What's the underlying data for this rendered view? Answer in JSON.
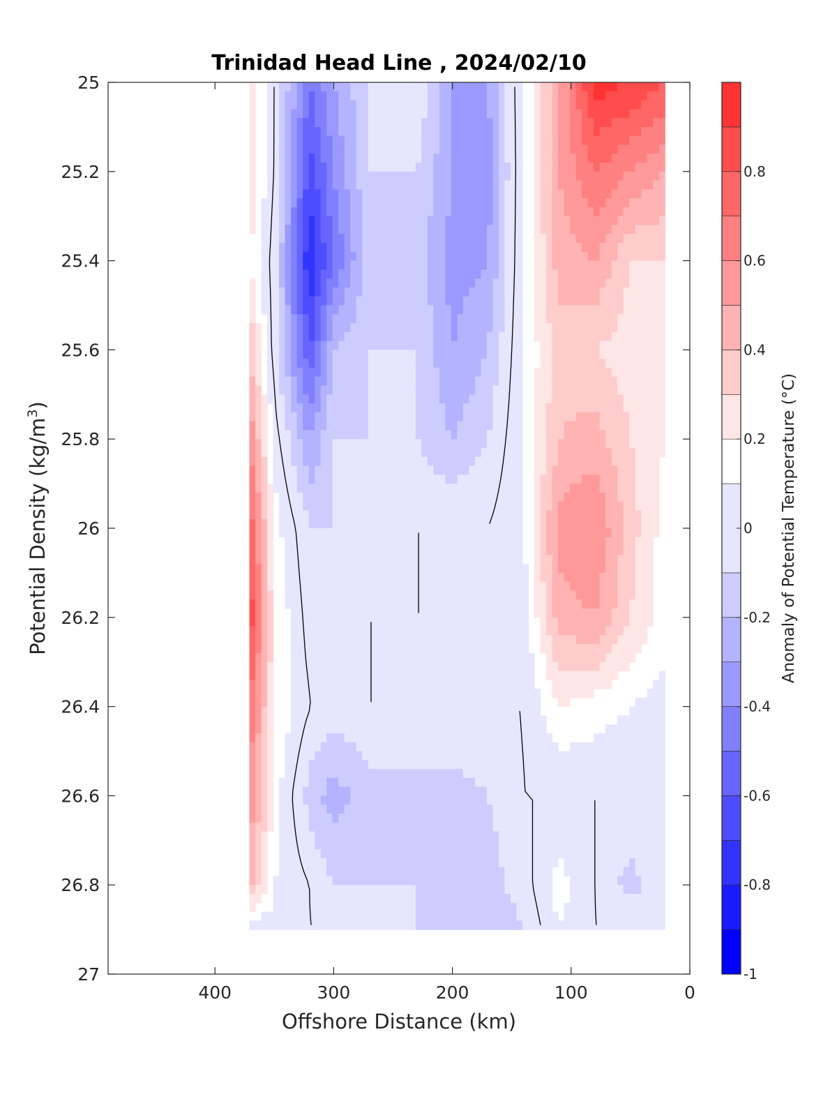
{
  "chart_data": {
    "type": "heatmap",
    "subtype": "filled-contour",
    "title": "Trinidad Head Line , 2024/02/10",
    "xlabel": "Offshore Distance (km)",
    "ylabel_main": "Potential Density (kg/m",
    "ylabel_sup": "3",
    "ylabel_close": ")",
    "xlim": [
      490,
      0
    ],
    "x_reversed": true,
    "ylim": [
      25,
      27
    ],
    "y_reversed": true,
    "x_ticks": [
      400,
      300,
      200,
      100,
      0
    ],
    "y_ticks": [
      "25",
      "25.2",
      "25.4",
      "25.6",
      "25.8",
      "26",
      "26.2",
      "26.4",
      "26.6",
      "26.8",
      "27"
    ],
    "grid": false,
    "colorbar": {
      "label": "Anomaly of Potential Temperature (°C)",
      "range": [
        -1,
        1
      ],
      "levels": [
        -1,
        -0.9,
        -0.8,
        -0.7,
        -0.6,
        -0.5,
        -0.4,
        -0.3,
        -0.2,
        -0.1,
        0.1,
        0.2,
        0.3,
        0.4,
        0.5,
        0.6,
        0.7,
        0.8,
        0.9,
        1
      ],
      "tick_labels": [
        "-1",
        "-0.8",
        "-0.6",
        "-0.4",
        "-0.2",
        "0",
        "0.2",
        "0.4",
        "0.6",
        "0.8"
      ],
      "tick_values": [
        -1,
        -0.8,
        -0.6,
        -0.4,
        -0.2,
        0,
        0.2,
        0.4,
        0.6,
        0.8
      ],
      "colors": [
        "#0000ff",
        "#1a1aff",
        "#3333ff",
        "#4d4dff",
        "#6666ff",
        "#8080ff",
        "#9999ff",
        "#b3b3ff",
        "#ccccff",
        "#e6e6ff",
        "#ffffff",
        "#ffe6e6",
        "#ffcccc",
        "#ffb3b3",
        "#ff9999",
        "#ff8080",
        "#ff6666",
        "#ff4d4d",
        "#ff3333",
        "#ff1a1a"
      ]
    },
    "data_extent": {
      "x": [
        371,
        21
      ],
      "y": [
        25,
        26.9
      ]
    },
    "grid_x": [
      371,
      350,
      320,
      300,
      270,
      230,
      200,
      170,
      140,
      110,
      80,
      50,
      21
    ],
    "grid_y": [
      25,
      25.2,
      25.4,
      25.6,
      25.8,
      26,
      26.2,
      26.4,
      26.6,
      26.8,
      26.9
    ],
    "values": [
      [
        0.3,
        0.0,
        -0.5,
        -0.3,
        -0.1,
        0.0,
        -0.3,
        -0.3,
        0.1,
        0.5,
        0.95,
        0.9,
        0.8
      ],
      [
        0.3,
        0.0,
        -0.65,
        -0.4,
        -0.1,
        -0.1,
        -0.3,
        -0.35,
        0.1,
        0.5,
        0.7,
        0.6,
        0.5
      ],
      [
        0.2,
        -0.05,
        -0.8,
        -0.5,
        -0.15,
        -0.15,
        -0.35,
        -0.3,
        0.1,
        0.45,
        0.5,
        0.3,
        0.3
      ],
      [
        0.4,
        -0.05,
        -0.6,
        -0.2,
        -0.1,
        -0.1,
        -0.3,
        -0.2,
        0.1,
        0.35,
        0.3,
        0.25,
        0.2
      ],
      [
        0.6,
        0.05,
        -0.3,
        -0.1,
        -0.1,
        -0.1,
        -0.2,
        -0.1,
        0.1,
        0.4,
        0.45,
        0.3,
        0.2
      ],
      [
        0.8,
        0.15,
        -0.1,
        -0.1,
        -0.05,
        0.0,
        0.0,
        0.0,
        0.1,
        0.55,
        0.6,
        0.35,
        0.15
      ],
      [
        0.9,
        0.2,
        -0.05,
        0.0,
        0.0,
        0.0,
        0.0,
        0.0,
        0.05,
        0.45,
        0.5,
        0.3,
        0.15
      ],
      [
        0.7,
        0.2,
        0.0,
        -0.05,
        0.0,
        0.0,
        0.0,
        0.0,
        0.0,
        0.2,
        0.15,
        0.1,
        0.05
      ],
      [
        0.6,
        0.15,
        -0.15,
        -0.25,
        -0.15,
        -0.15,
        -0.15,
        -0.1,
        0.0,
        0.0,
        0.0,
        0.0,
        0.0
      ],
      [
        0.45,
        0.1,
        0.0,
        -0.1,
        -0.1,
        -0.1,
        -0.15,
        -0.15,
        -0.05,
        0.15,
        0.0,
        -0.15,
        0.0
      ],
      [
        0.0,
        0.05,
        0.0,
        0.0,
        0.0,
        -0.1,
        -0.15,
        -0.2,
        -0.1,
        0.1,
        0.0,
        0.0,
        0.0
      ]
    ]
  }
}
